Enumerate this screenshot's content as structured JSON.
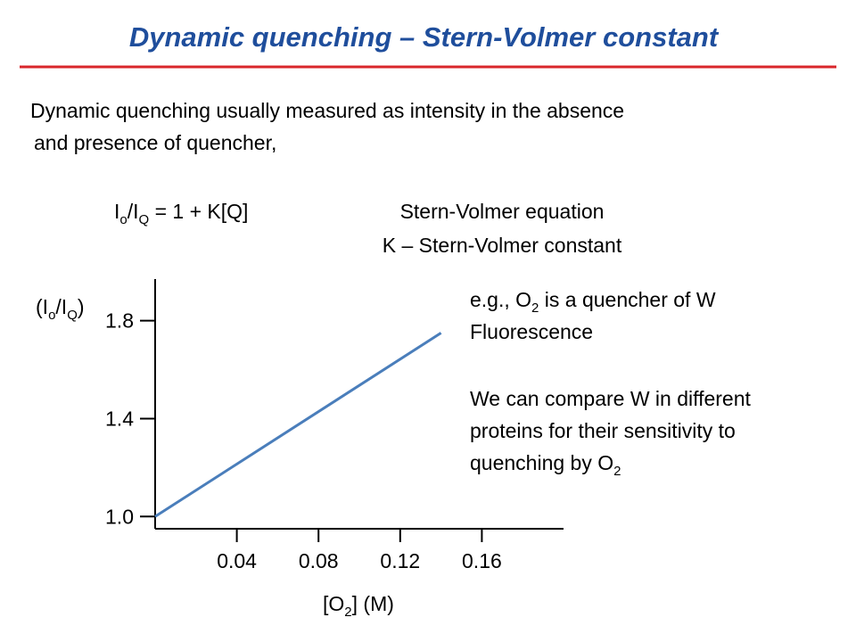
{
  "title": "Dynamic quenching – Stern-Volmer constant",
  "intro": [
    "Dynamic quenching usually measured as intensity in the absence",
    "and presence of quencher,"
  ],
  "equation": [
    "I",
    "o",
    "/I",
    "Q",
    " = 1 + K[Q]"
  ],
  "equation_name": "Stern-Volmer equation",
  "constant_def": "K – Stern-Volmer constant",
  "chart_data": {
    "type": "line",
    "y_label": [
      "(I",
      "o",
      "/I",
      "Q",
      ")"
    ],
    "x_label": [
      "[O",
      "2",
      "] (M)"
    ],
    "x": [
      0,
      0.14
    ],
    "series": [
      {
        "color": "#4a7ebb",
        "values": [
          1.0,
          1.75
        ]
      }
    ],
    "xlim": [
      0,
      0.2
    ],
    "ylim": [
      0.95,
      1.97
    ],
    "xticks": [
      0.04,
      0.08,
      0.12,
      0.16
    ],
    "yticks": [
      {
        "value": 1,
        "label": "1.0"
      },
      1.4,
      1.8
    ],
    "annotations": [
      [
        "e.g., O",
        "2",
        " is a quencher of W"
      ],
      "Fluorescence",
      "We can compare W in different",
      "proteins for their sensitivity to",
      [
        "quenching by O",
        "2"
      ]
    ]
  }
}
